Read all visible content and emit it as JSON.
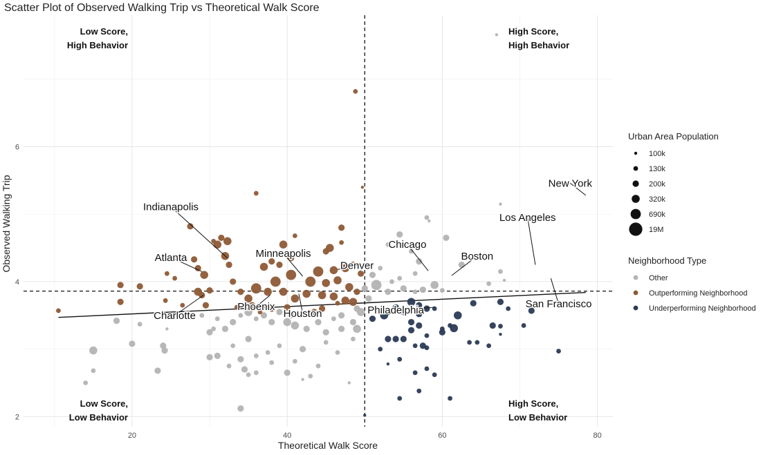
{
  "chart_data": {
    "type": "scatter",
    "title": "Scatter Plot of Observed Walking Trip vs Theoretical Walk Score",
    "xlabel": "Theoretical Walk Score",
    "ylabel": "Observed Walking Trip",
    "xlim": [
      6,
      82
    ],
    "ylim": [
      1.85,
      7.95
    ],
    "x_ticks": [
      20,
      40,
      60,
      80
    ],
    "y_ticks": [
      2,
      4,
      6
    ],
    "grid": true,
    "reference_lines": {
      "vertical_x": 50,
      "horizontal_y": 3.86
    },
    "trend_line": [
      [
        10.5,
        3.47
      ],
      [
        78.5,
        3.84
      ]
    ],
    "quadrant_labels": [
      {
        "id": "top-left",
        "lines": [
          "Low Score,",
          "High Behavior"
        ]
      },
      {
        "id": "top-right",
        "lines": [
          "High Score,",
          "High Behavior"
        ]
      },
      {
        "id": "bottom-left",
        "lines": [
          "Low Score,",
          "Low Behavior"
        ]
      },
      {
        "id": "bottom-right",
        "lines": [
          "High Score,",
          "Low Behavior"
        ]
      }
    ],
    "legend_placement": "right",
    "size_legend": {
      "title": "Urban Area Population",
      "entries": [
        {
          "label": "100k",
          "size": 1
        },
        {
          "label": "130k",
          "size": 2
        },
        {
          "label": "200k",
          "size": 3
        },
        {
          "label": "320k",
          "size": 4
        },
        {
          "label": "690k",
          "size": 5
        },
        {
          "label": "19M",
          "size": 6
        }
      ]
    },
    "color_legend": {
      "title": "Neighborhood Type",
      "entries": [
        {
          "key": "other",
          "label": "Other",
          "color": "#b3b3b3"
        },
        {
          "key": "out",
          "label": "Outperforming Neighborhood",
          "color": "#8e5a36"
        },
        {
          "key": "under",
          "label": "Underperforming Neighborhood",
          "color": "#2b3a55"
        }
      ]
    },
    "city_labels": [
      {
        "name": "New York",
        "x": 78.5,
        "y": 5.28,
        "lx": 76.5,
        "ly": 5.46
      },
      {
        "name": "Los Angeles",
        "x": 72.0,
        "y": 4.25,
        "lx": 71.0,
        "ly": 4.95
      },
      {
        "name": "San Francisco",
        "x": 74.0,
        "y": 4.05,
        "lx": 75.0,
        "ly": 3.67
      },
      {
        "name": "Chicago",
        "x": 58.2,
        "y": 4.16,
        "lx": 55.5,
        "ly": 4.55
      },
      {
        "name": "Boston",
        "x": 61.2,
        "y": 4.09,
        "lx": 64.5,
        "ly": 4.38
      },
      {
        "name": "Philadelphia",
        "x": 59.0,
        "y": 3.62,
        "lx": 54.0,
        "ly": 3.58
      },
      {
        "name": "Denver",
        "x": 46.5,
        "y": 4.18,
        "lx": 49.0,
        "ly": 4.24
      },
      {
        "name": "Houston",
        "x": 41.5,
        "y": 3.82,
        "lx": 42.0,
        "ly": 3.53
      },
      {
        "name": "Minneapolis",
        "x": 42.0,
        "y": 4.08,
        "lx": 39.5,
        "ly": 4.42
      },
      {
        "name": "Phoenix",
        "x": 37.8,
        "y": 3.8,
        "lx": 36.0,
        "ly": 3.63
      },
      {
        "name": "Charlotte",
        "x": 29.2,
        "y": 3.8,
        "lx": 25.5,
        "ly": 3.5
      },
      {
        "name": "Atlanta",
        "x": 29.0,
        "y": 4.15,
        "lx": 25.0,
        "ly": 4.36
      },
      {
        "name": "Indianapolis",
        "x": 32.3,
        "y": 4.35,
        "lx": 25.0,
        "ly": 5.11
      }
    ],
    "series": [
      {
        "key": "other",
        "name": "Other",
        "points": [
          [
            67,
            7.66,
            1
          ],
          [
            60.5,
            4.65,
            3
          ],
          [
            62.5,
            4.25,
            3
          ],
          [
            58,
            4.95,
            2
          ],
          [
            58.3,
            4.9,
            1
          ],
          [
            66,
            3.97,
            2
          ],
          [
            67.5,
            5.15,
            1
          ],
          [
            67.5,
            4.15,
            2
          ],
          [
            68,
            4.02,
            1
          ],
          [
            54.5,
            4.7,
            3
          ],
          [
            56,
            4.45,
            2
          ],
          [
            57,
            4.3,
            3
          ],
          [
            53,
            4.55,
            2
          ],
          [
            52,
            4.2,
            2
          ],
          [
            51,
            4.1,
            3
          ],
          [
            51.5,
            3.95,
            5
          ],
          [
            53,
            3.85,
            3
          ],
          [
            53.5,
            4.0,
            2
          ],
          [
            55,
            3.9,
            3
          ],
          [
            56.5,
            3.85,
            2
          ],
          [
            57.5,
            3.88,
            3
          ],
          [
            59,
            3.95,
            4
          ],
          [
            60,
            3.87,
            2
          ],
          [
            54.5,
            4.05,
            2
          ],
          [
            56.5,
            4.12,
            2
          ],
          [
            50,
            3.9,
            3
          ],
          [
            50.5,
            3.75,
            3
          ],
          [
            49.5,
            3.55,
            4
          ],
          [
            48.5,
            3.4,
            3
          ],
          [
            49,
            3.3,
            4
          ],
          [
            48.5,
            3.15,
            2
          ],
          [
            47,
            3.3,
            3
          ],
          [
            46,
            3.45,
            2
          ],
          [
            45,
            3.25,
            3
          ],
          [
            44,
            3.4,
            3
          ],
          [
            43,
            3.5,
            2
          ],
          [
            42.5,
            3.3,
            3
          ],
          [
            41,
            3.35,
            4
          ],
          [
            40.5,
            3.5,
            3
          ],
          [
            40,
            3.4,
            4
          ],
          [
            39,
            3.55,
            3
          ],
          [
            38,
            3.4,
            3
          ],
          [
            37,
            3.5,
            3
          ],
          [
            36,
            3.45,
            2
          ],
          [
            35,
            3.55,
            4
          ],
          [
            34,
            3.5,
            2
          ],
          [
            33,
            3.4,
            3
          ],
          [
            32,
            3.3,
            3
          ],
          [
            31,
            3.45,
            2
          ],
          [
            30.5,
            3.3,
            2
          ],
          [
            30,
            3.25,
            3
          ],
          [
            29,
            3.5,
            2
          ],
          [
            45,
            3.1,
            2
          ],
          [
            42,
            3.0,
            3
          ],
          [
            39,
            3.05,
            2
          ],
          [
            37.5,
            2.95,
            2
          ],
          [
            36,
            2.9,
            2
          ],
          [
            35,
            3.15,
            3
          ],
          [
            34,
            2.85,
            3
          ],
          [
            33,
            3.05,
            2
          ],
          [
            32.5,
            2.75,
            2
          ],
          [
            31,
            2.9,
            3
          ],
          [
            30,
            2.88,
            3
          ],
          [
            38,
            2.8,
            2
          ],
          [
            41,
            2.82,
            2
          ],
          [
            44,
            2.75,
            2
          ],
          [
            46.5,
            2.95,
            2
          ],
          [
            40,
            2.65,
            3
          ],
          [
            43,
            2.6,
            2
          ],
          [
            36,
            2.65,
            2
          ],
          [
            34.5,
            2.7,
            3
          ],
          [
            35,
            2.62,
            2
          ],
          [
            42,
            2.55,
            1
          ],
          [
            48,
            2.5,
            1
          ],
          [
            24,
            3.05,
            3
          ],
          [
            24.2,
            2.98,
            3
          ],
          [
            23.3,
            2.68,
            3
          ],
          [
            20,
            3.08,
            3
          ],
          [
            21,
            3.37,
            2
          ],
          [
            18,
            3.42,
            3
          ],
          [
            15,
            2.98,
            4
          ],
          [
            15,
            2.68,
            2
          ],
          [
            14,
            2.5,
            2
          ],
          [
            24.5,
            3.3,
            1
          ],
          [
            26,
            3.5,
            2
          ],
          [
            34,
            2.12,
            3
          ],
          [
            47,
            3.5,
            3
          ],
          [
            49,
            3.6,
            3
          ]
        ]
      },
      {
        "key": "out",
        "name": "Outperforming Neighborhood",
        "points": [
          [
            48.8,
            6.82,
            2
          ],
          [
            49.7,
            5.4,
            1
          ],
          [
            36,
            5.31,
            2
          ],
          [
            47,
            4.8,
            3
          ],
          [
            41,
            4.68,
            2
          ],
          [
            47,
            4.58,
            2
          ],
          [
            45.5,
            4.5,
            4
          ],
          [
            45,
            4.45,
            3
          ],
          [
            39.5,
            4.55,
            4
          ],
          [
            42,
            4.4,
            3
          ],
          [
            38,
            4.3,
            3
          ],
          [
            40.5,
            4.35,
            3
          ],
          [
            44,
            4.15,
            5
          ],
          [
            46,
            4.17,
            4
          ],
          [
            47.5,
            4.2,
            4
          ],
          [
            48.5,
            4.25,
            3
          ],
          [
            49.5,
            4.12,
            3
          ],
          [
            43,
            4.0,
            5
          ],
          [
            45,
            3.98,
            4
          ],
          [
            46.5,
            4.02,
            4
          ],
          [
            48,
            3.92,
            4
          ],
          [
            49,
            3.85,
            3
          ],
          [
            37,
            4.22,
            4
          ],
          [
            39,
            4.25,
            3
          ],
          [
            40.5,
            4.1,
            5
          ],
          [
            38.5,
            4.0,
            5
          ],
          [
            37.5,
            3.85,
            4
          ],
          [
            36,
            3.9,
            5
          ],
          [
            35,
            3.75,
            4
          ],
          [
            34,
            3.85,
            3
          ],
          [
            35.5,
            3.65,
            3
          ],
          [
            39.5,
            3.85,
            4
          ],
          [
            41,
            3.75,
            4
          ],
          [
            42.5,
            3.82,
            4
          ],
          [
            44.5,
            3.8,
            4
          ],
          [
            46,
            3.78,
            4
          ],
          [
            47.5,
            3.72,
            4
          ],
          [
            48.5,
            3.7,
            4
          ],
          [
            43.5,
            3.55,
            3
          ],
          [
            38,
            3.6,
            3
          ],
          [
            33,
            4.0,
            3
          ],
          [
            32.5,
            4.25,
            3
          ],
          [
            32,
            4.38,
            4
          ],
          [
            31,
            4.55,
            4
          ],
          [
            31.5,
            4.65,
            3
          ],
          [
            32.3,
            4.6,
            4
          ],
          [
            30.5,
            4.6,
            2
          ],
          [
            30,
            3.87,
            3
          ],
          [
            29.3,
            4.1,
            4
          ],
          [
            28,
            4.33,
            3
          ],
          [
            28.5,
            4.2,
            3
          ],
          [
            28.5,
            3.85,
            4
          ],
          [
            29,
            3.8,
            3
          ],
          [
            29.5,
            3.65,
            3
          ],
          [
            27.5,
            4.82,
            3
          ],
          [
            25.5,
            4.05,
            2
          ],
          [
            24.5,
            4.12,
            2
          ],
          [
            24.3,
            3.72,
            2
          ],
          [
            21,
            3.93,
            3
          ],
          [
            18.5,
            3.95,
            3
          ],
          [
            18.5,
            3.7,
            3
          ],
          [
            10.5,
            3.57,
            2
          ],
          [
            26.5,
            3.65,
            2
          ],
          [
            33.5,
            3.62,
            2
          ],
          [
            36.5,
            3.55,
            2
          ],
          [
            40,
            3.62,
            3
          ],
          [
            44.5,
            3.6,
            3
          ],
          [
            46.5,
            3.68,
            2
          ]
        ]
      },
      {
        "key": "under",
        "name": "Underperforming Neighborhood",
        "points": [
          [
            67.5,
            3.7,
            3
          ],
          [
            71.5,
            3.57,
            3
          ],
          [
            75,
            2.97,
            2
          ],
          [
            70.5,
            3.35,
            2
          ],
          [
            68.5,
            3.6,
            2
          ],
          [
            66.5,
            3.35,
            3
          ],
          [
            67.5,
            3.34,
            2
          ],
          [
            64,
            3.68,
            3
          ],
          [
            66,
            3.05,
            2
          ],
          [
            64.5,
            3.1,
            2
          ],
          [
            63.5,
            3.1,
            2
          ],
          [
            67.5,
            3.22,
            1
          ],
          [
            62,
            3.5,
            4
          ],
          [
            61.5,
            3.31,
            4
          ],
          [
            61,
            3.35,
            2
          ],
          [
            60,
            3.25,
            3
          ],
          [
            60,
            3.3,
            2
          ],
          [
            59,
            3.6,
            2
          ],
          [
            58,
            3.6,
            3
          ],
          [
            57,
            3.65,
            3
          ],
          [
            56,
            3.7,
            4
          ],
          [
            57,
            3.52,
            3
          ],
          [
            55,
            3.55,
            3
          ],
          [
            54,
            3.62,
            3
          ],
          [
            53,
            3.55,
            3
          ],
          [
            52.5,
            3.5,
            4
          ],
          [
            51,
            3.45,
            3
          ],
          [
            56,
            3.4,
            3
          ],
          [
            57,
            3.35,
            3
          ],
          [
            58,
            3.2,
            2
          ],
          [
            56.5,
            3.05,
            2
          ],
          [
            57.5,
            3.05,
            3
          ],
          [
            58,
            3.02,
            2
          ],
          [
            56,
            3.28,
            3
          ],
          [
            55,
            3.15,
            3
          ],
          [
            54,
            3.15,
            3
          ],
          [
            53,
            3.15,
            3
          ],
          [
            52,
            3.0,
            2
          ],
          [
            54.5,
            2.85,
            2
          ],
          [
            53,
            2.78,
            1
          ],
          [
            58,
            2.71,
            2
          ],
          [
            59,
            2.62,
            2
          ],
          [
            56.5,
            2.65,
            2
          ],
          [
            57,
            2.38,
            2
          ],
          [
            54.5,
            2.27,
            2
          ],
          [
            61,
            2.27,
            2
          ],
          [
            50,
            2.02,
            1
          ]
        ]
      }
    ]
  }
}
